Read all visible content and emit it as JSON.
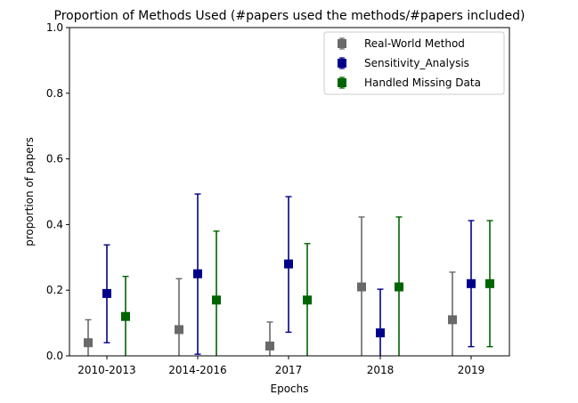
{
  "chart_data": {
    "type": "scatter",
    "title": "Proportion of Methods Used (#papers used the methods/#papers included)",
    "xlabel": "Epochs",
    "ylabel": "proportion of papers",
    "categories": [
      "2010-2013",
      "2014-2016",
      "2017",
      "2018",
      "2019"
    ],
    "ylim": [
      0,
      1.0
    ],
    "yticks": [
      "0.0",
      "0.2",
      "0.4",
      "0.6",
      "0.8",
      "1.0"
    ],
    "grid": false,
    "legend_position": "upper-right",
    "series": [
      {
        "name": "Real-World Method",
        "color": "#696969",
        "values": [
          0.04,
          0.08,
          0.03,
          0.21,
          0.11
        ],
        "error_low": [
          0.0,
          0.0,
          0.0,
          0.0,
          0.0
        ],
        "error_high": [
          0.11,
          0.235,
          0.103,
          0.423,
          0.255
        ]
      },
      {
        "name": "Sensitivity_Analysis",
        "color": "#00008b",
        "values": [
          0.19,
          0.25,
          0.28,
          0.07,
          0.22
        ],
        "error_low": [
          0.04,
          0.005,
          0.072,
          0.0,
          0.028
        ],
        "error_high": [
          0.338,
          0.493,
          0.485,
          0.203,
          0.412
        ]
      },
      {
        "name": "Handled Missing Data",
        "color": "#006400",
        "values": [
          0.12,
          0.17,
          0.17,
          0.21,
          0.22
        ],
        "error_low": [
          0.0,
          0.0,
          0.0,
          0.0,
          0.028
        ],
        "error_high": [
          0.242,
          0.38,
          0.342,
          0.423,
          0.412
        ]
      }
    ]
  }
}
